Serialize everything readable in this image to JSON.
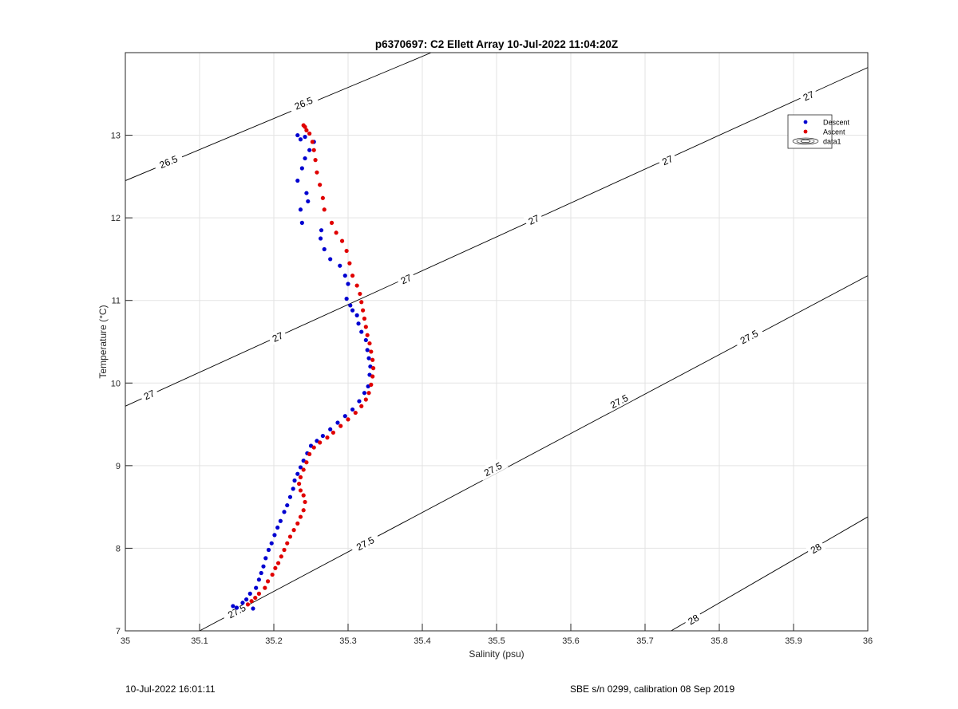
{
  "chart_data": {
    "type": "scatter",
    "title": "p6370697: C2 Ellett Array 10-Jul-2022 11:04:20Z",
    "xlabel": "Salinity (psu)",
    "ylabel": "Temperature (°C)",
    "xlim": [
      35,
      36
    ],
    "ylim": [
      7,
      14
    ],
    "x_ticks": [
      35,
      35.1,
      35.2,
      35.3,
      35.4,
      35.5,
      35.6,
      35.7,
      35.8,
      35.9,
      36
    ],
    "x_tick_labels": [
      "35",
      "35.1",
      "35.2",
      "35.3",
      "35.4",
      "35.5",
      "35.6",
      "35.7",
      "35.8",
      "35.9",
      "36"
    ],
    "y_ticks": [
      7,
      8,
      9,
      10,
      11,
      12,
      13
    ],
    "y_tick_labels": [
      "7",
      "8",
      "9",
      "10",
      "11",
      "12",
      "13"
    ],
    "grid": true,
    "legend_position": "top-right",
    "legend": [
      {
        "label": "Descent",
        "color": "#0000d0",
        "marker": "dot"
      },
      {
        "label": "Ascent",
        "color": "#e00000",
        "marker": "dot"
      },
      {
        "label": "data1",
        "marker": "contour"
      }
    ],
    "series": [
      {
        "name": "Descent",
        "color": "#0000d0",
        "points": [
          [
            35.145,
            7.3
          ],
          [
            35.15,
            7.28
          ],
          [
            35.158,
            7.34
          ],
          [
            35.163,
            7.38
          ],
          [
            35.168,
            7.45
          ],
          [
            35.172,
            7.27
          ],
          [
            35.176,
            7.52
          ],
          [
            35.18,
            7.62
          ],
          [
            35.183,
            7.7
          ],
          [
            35.186,
            7.78
          ],
          [
            35.189,
            7.88
          ],
          [
            35.193,
            7.98
          ],
          [
            35.197,
            8.06
          ],
          [
            35.201,
            8.16
          ],
          [
            35.205,
            8.25
          ],
          [
            35.209,
            8.33
          ],
          [
            35.214,
            8.44
          ],
          [
            35.218,
            8.52
          ],
          [
            35.222,
            8.62
          ],
          [
            35.226,
            8.72
          ],
          [
            35.228,
            8.82
          ],
          [
            35.232,
            8.9
          ],
          [
            35.236,
            8.98
          ],
          [
            35.24,
            9.06
          ],
          [
            35.245,
            9.15
          ],
          [
            35.25,
            9.24
          ],
          [
            35.258,
            9.3
          ],
          [
            35.266,
            9.36
          ],
          [
            35.276,
            9.44
          ],
          [
            35.286,
            9.52
          ],
          [
            35.296,
            9.6
          ],
          [
            35.306,
            9.68
          ],
          [
            35.315,
            9.78
          ],
          [
            35.322,
            9.88
          ],
          [
            35.327,
            9.96
          ],
          [
            35.329,
            10.1
          ],
          [
            35.33,
            10.2
          ],
          [
            35.328,
            10.3
          ],
          [
            35.326,
            10.4
          ],
          [
            35.324,
            10.52
          ],
          [
            35.318,
            10.62
          ],
          [
            35.314,
            10.72
          ],
          [
            35.312,
            10.82
          ],
          [
            35.306,
            10.88
          ],
          [
            35.303,
            10.94
          ],
          [
            35.298,
            11.02
          ],
          [
            35.3,
            11.2
          ],
          [
            35.296,
            11.3
          ],
          [
            35.289,
            11.42
          ],
          [
            35.276,
            11.5
          ],
          [
            35.268,
            11.62
          ],
          [
            35.263,
            11.75
          ],
          [
            35.264,
            11.85
          ],
          [
            35.238,
            11.94
          ],
          [
            35.236,
            12.1
          ],
          [
            35.246,
            12.2
          ],
          [
            35.244,
            12.3
          ],
          [
            35.232,
            12.45
          ],
          [
            35.238,
            12.6
          ],
          [
            35.242,
            12.72
          ],
          [
            35.248,
            12.82
          ],
          [
            35.236,
            12.95
          ],
          [
            35.232,
            13.0
          ],
          [
            35.242,
            12.98
          ],
          [
            35.254,
            12.92
          ]
        ]
      },
      {
        "name": "Ascent",
        "color": "#e00000",
        "points": [
          [
            35.165,
            7.32
          ],
          [
            35.17,
            7.36
          ],
          [
            35.175,
            7.4
          ],
          [
            35.18,
            7.45
          ],
          [
            35.188,
            7.52
          ],
          [
            35.192,
            7.6
          ],
          [
            35.198,
            7.68
          ],
          [
            35.202,
            7.76
          ],
          [
            35.206,
            7.82
          ],
          [
            35.21,
            7.9
          ],
          [
            35.214,
            7.98
          ],
          [
            35.218,
            8.06
          ],
          [
            35.222,
            8.14
          ],
          [
            35.227,
            8.22
          ],
          [
            35.232,
            8.3
          ],
          [
            35.236,
            8.38
          ],
          [
            35.24,
            8.46
          ],
          [
            35.242,
            8.56
          ],
          [
            35.24,
            8.64
          ],
          [
            35.236,
            8.7
          ],
          [
            35.234,
            8.78
          ],
          [
            35.236,
            8.86
          ],
          [
            35.24,
            8.95
          ],
          [
            35.244,
            9.04
          ],
          [
            35.248,
            9.14
          ],
          [
            35.254,
            9.22
          ],
          [
            35.262,
            9.28
          ],
          [
            35.272,
            9.34
          ],
          [
            35.28,
            9.4
          ],
          [
            35.29,
            9.48
          ],
          [
            35.3,
            9.56
          ],
          [
            35.31,
            9.64
          ],
          [
            35.318,
            9.72
          ],
          [
            35.324,
            9.8
          ],
          [
            35.328,
            9.88
          ],
          [
            35.331,
            9.98
          ],
          [
            35.333,
            10.08
          ],
          [
            35.334,
            10.18
          ],
          [
            35.333,
            10.28
          ],
          [
            35.331,
            10.38
          ],
          [
            35.329,
            10.48
          ],
          [
            35.326,
            10.58
          ],
          [
            35.324,
            10.68
          ],
          [
            35.322,
            10.78
          ],
          [
            35.32,
            10.88
          ],
          [
            35.318,
            10.98
          ],
          [
            35.316,
            11.08
          ],
          [
            35.312,
            11.18
          ],
          [
            35.306,
            11.3
          ],
          [
            35.302,
            11.45
          ],
          [
            35.298,
            11.6
          ],
          [
            35.292,
            11.72
          ],
          [
            35.284,
            11.82
          ],
          [
            35.278,
            11.94
          ],
          [
            35.268,
            12.1
          ],
          [
            35.266,
            12.24
          ],
          [
            35.262,
            12.4
          ],
          [
            35.258,
            12.55
          ],
          [
            35.256,
            12.7
          ],
          [
            35.254,
            12.82
          ],
          [
            35.252,
            12.92
          ],
          [
            35.248,
            13.02
          ],
          [
            35.244,
            13.06
          ],
          [
            35.242,
            13.1
          ],
          [
            35.24,
            13.12
          ]
        ]
      }
    ],
    "isopycnals": [
      {
        "label": "26.5",
        "points": [
          [
            35.0,
            12.45
          ],
          [
            35.412,
            14.0
          ]
        ],
        "label_positions": [
          [
            35.058,
            12.68
          ],
          [
            35.24,
            13.39
          ]
        ]
      },
      {
        "label": "27",
        "points": [
          [
            35.0,
            9.72
          ],
          [
            36.0,
            13.82
          ]
        ],
        "label_positions": [
          [
            35.032,
            9.86
          ],
          [
            35.205,
            10.56
          ],
          [
            35.378,
            11.26
          ],
          [
            35.55,
            11.98
          ],
          [
            35.73,
            12.7
          ],
          [
            35.92,
            13.48
          ]
        ]
      },
      {
        "label": "27.5",
        "points": [
          [
            35.1,
            7.0
          ],
          [
            36.0,
            11.3
          ]
        ],
        "label_positions": [
          [
            35.15,
            7.24
          ],
          [
            35.323,
            8.06
          ],
          [
            35.495,
            8.96
          ],
          [
            35.665,
            9.78
          ],
          [
            35.84,
            10.56
          ]
        ]
      },
      {
        "label": "28",
        "points": [
          [
            35.735,
            7.0
          ],
          [
            36.0,
            8.38
          ]
        ],
        "label_positions": [
          [
            35.765,
            7.14
          ],
          [
            35.93,
            8.0
          ]
        ]
      }
    ]
  },
  "footer": {
    "timestamp": "10-Jul-2022 16:01:11",
    "calibration": "SBE s/n 0299, calibration 08 Sep 2019"
  }
}
